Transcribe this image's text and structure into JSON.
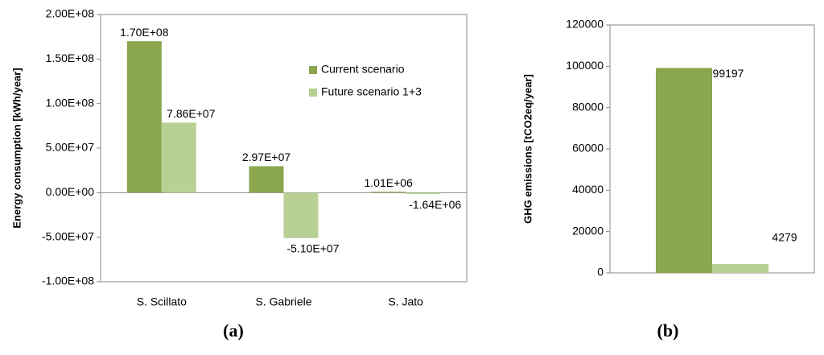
{
  "chart_data": [
    {
      "type": "bar",
      "panel_label": "(a)",
      "y_label": "Energy consumption [kWh/year]",
      "categories": [
        "S. Scillato",
        "S. Gabriele",
        "S. Jato"
      ],
      "series": [
        {
          "name": "Current scenario",
          "color": "#8aa64f",
          "values": [
            170000000,
            29700000,
            1010000
          ],
          "value_labels": [
            "1.70E+08",
            "2.97E+07",
            "1.01E+06"
          ]
        },
        {
          "name": "Future scenario 1+3",
          "color": "#b9d095",
          "values": [
            78600000,
            -51000000,
            -1640000
          ],
          "value_labels": [
            "7.86E+07",
            "-5.10E+07",
            "-1.64E+06"
          ]
        }
      ],
      "ylim": [
        -100000000,
        200000000
      ],
      "yticks": [
        {
          "value": -100000000,
          "label": "-1.00E+08"
        },
        {
          "value": -50000000,
          "label": "-5.00E+07"
        },
        {
          "value": 0,
          "label": "0.00E+00"
        },
        {
          "value": 50000000,
          "label": "5.00E+07"
        },
        {
          "value": 100000000,
          "label": "1.00E+08"
        },
        {
          "value": 150000000,
          "label": "1.50E+08"
        },
        {
          "value": 200000000,
          "label": "2.00E+08"
        }
      ],
      "legend": "upper right"
    },
    {
      "type": "bar",
      "panel_label": "(b)",
      "y_label": "GHG emissions [tCO2eq/year]",
      "categories": [
        null,
        null
      ],
      "values": [
        99197,
        4279
      ],
      "colors": [
        "#8aa64f",
        "#b9d095"
      ],
      "ylim": [
        0,
        120000
      ],
      "yticks": [
        0,
        20000,
        40000,
        60000,
        80000,
        100000,
        120000
      ]
    }
  ]
}
